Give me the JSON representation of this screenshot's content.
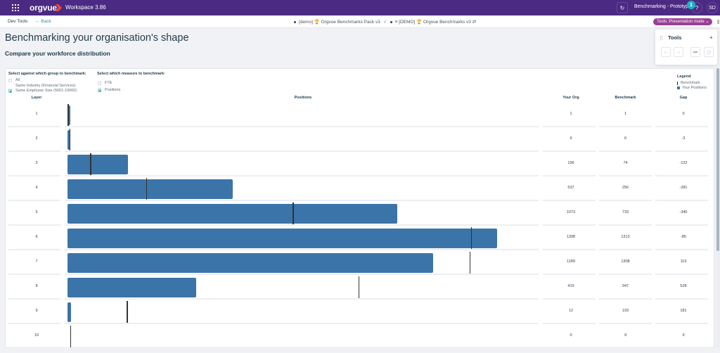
{
  "topbar": {
    "logo": "orgvue",
    "workspace": "Workspace  3.86",
    "project": "Benchmarking - Prototype",
    "notification_count": "1",
    "help": "?",
    "user_initials": "SD",
    "sync_icon": "sync-icon"
  },
  "subbar": {
    "dev_tools": "Dev Tools",
    "back": "←  Back",
    "crumb_1": "[demo] 🏆 Orgvue Benchmarks Pack v3",
    "separator": "/",
    "crumb_2": "≡ [DEMO] 🏆 Orgvue Benchmarks v3 ⇄",
    "mode_button": "Tools: Presentation mode ⌄"
  },
  "page": {
    "title": "Benchmarking your organisation's shape",
    "title_chevron": "⌄",
    "subtitle": "Compare your workforce distribution"
  },
  "tools_panel": {
    "title": "Tools",
    "add": "+",
    "buttons": [
      "←",
      "→",
      "▬",
      "▢"
    ]
  },
  "controls": {
    "group_label": "Select against which group to benchmark:",
    "group_options": [
      {
        "label": "All",
        "checked": false
      },
      {
        "label": "Same Industry (Financial Services)",
        "checked": false
      },
      {
        "label": "Same Employee Size (5001-10000)",
        "checked": true
      }
    ],
    "measure_label": "Select which measure to benchmark:",
    "measure_options": [
      {
        "label": "FTE",
        "checked": false
      },
      {
        "label": "Positions",
        "checked": true
      }
    ]
  },
  "legend": {
    "title": "Legend",
    "items": [
      "Benchmark",
      "Your Positions"
    ]
  },
  "table": {
    "headers": [
      "Layer",
      "Positions",
      "Your Org",
      "Benchmark",
      "Gap"
    ],
    "rows": [
      {
        "layer": "1",
        "your_org": "1",
        "benchmark": "1",
        "gap": "0"
      },
      {
        "layer": "2",
        "your_org": "9",
        "benchmark": "6",
        "gap": "-3"
      },
      {
        "layer": "3",
        "your_org": "196",
        "benchmark": "74",
        "gap": "-122"
      },
      {
        "layer": "4",
        "your_org": "537",
        "benchmark": "256",
        "gap": "-281"
      },
      {
        "layer": "5",
        "your_org": "1073",
        "benchmark": "733",
        "gap": "-340"
      },
      {
        "layer": "6",
        "your_org": "1398",
        "benchmark": "1313",
        "gap": "-85"
      },
      {
        "layer": "7",
        "your_org": "1189",
        "benchmark": "1308",
        "gap": "119"
      },
      {
        "layer": "8",
        "your_org": "419",
        "benchmark": "947",
        "gap": "528"
      },
      {
        "layer": "9",
        "your_org": "12",
        "benchmark": "193",
        "gap": "181"
      },
      {
        "layer": "10",
        "your_org": "0",
        "benchmark": "9",
        "gap": "9"
      }
    ]
  },
  "colors": {
    "topbar": "#4a2a82",
    "bar": "#3b74a8",
    "benchmark_marker": "#333333",
    "mode_button": "#9a3f96",
    "badge": "#1fb2c4"
  },
  "chart_data": {
    "type": "bar",
    "orientation": "horizontal",
    "title": "Positions",
    "categories": [
      "1",
      "2",
      "3",
      "4",
      "5",
      "6",
      "7",
      "8",
      "9",
      "10"
    ],
    "series": [
      {
        "name": "Your Positions",
        "values": [
          1,
          9,
          196,
          537,
          1073,
          1398,
          1189,
          419,
          12,
          0
        ]
      },
      {
        "name": "Benchmark",
        "values": [
          1,
          6,
          74,
          256,
          733,
          1313,
          1308,
          947,
          193,
          9
        ]
      }
    ],
    "xlabel": "Positions",
    "ylabel": "Layer"
  }
}
